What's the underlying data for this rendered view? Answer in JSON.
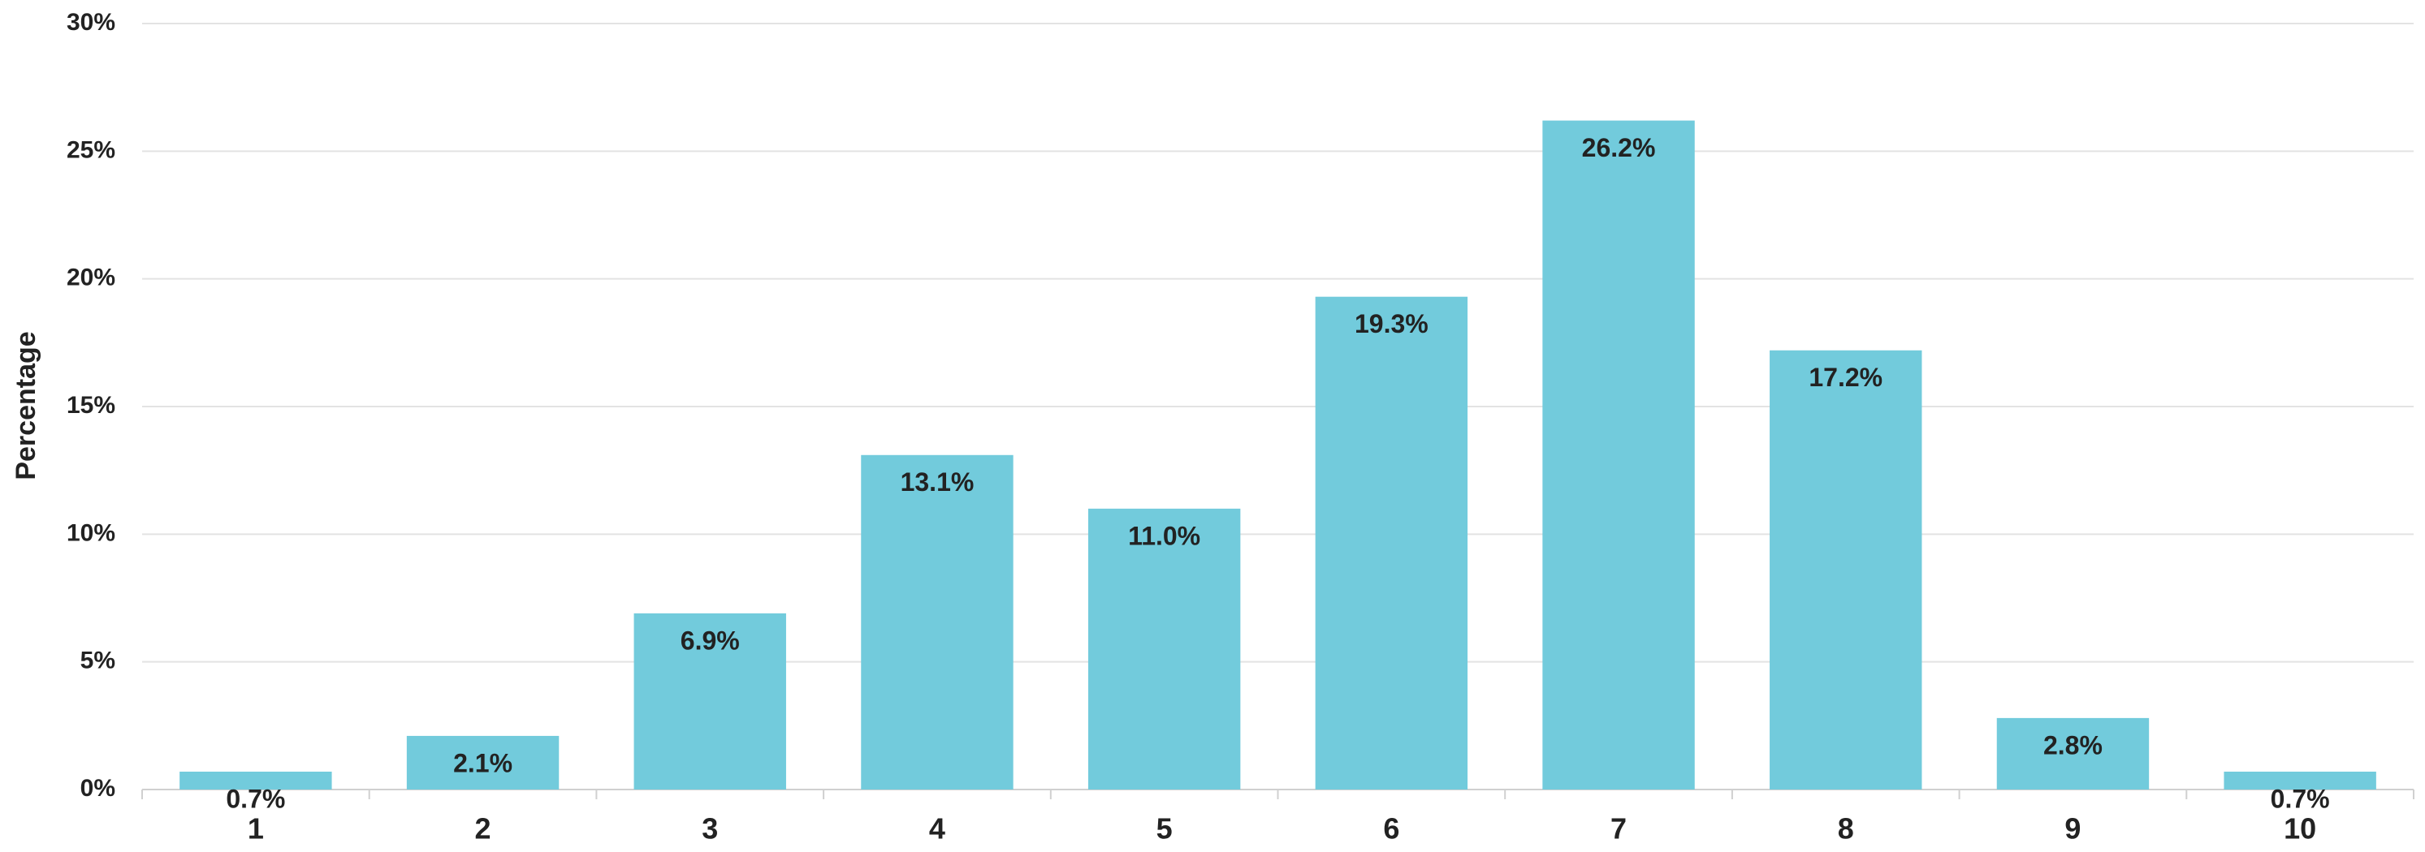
{
  "chart_data": {
    "type": "bar",
    "y_label": "Percentage",
    "categories": [
      "1",
      "2",
      "3",
      "4",
      "5",
      "6",
      "7",
      "8",
      "9",
      "10"
    ],
    "values": [
      0.7,
      2.1,
      6.9,
      13.1,
      11.0,
      19.3,
      26.2,
      17.2,
      2.8,
      0.7
    ],
    "value_labels": [
      "0.7%",
      "2.1%",
      "6.9%",
      "13.1%",
      "11.0%",
      "19.3%",
      "26.2%",
      "17.2%",
      "2.8%",
      "0.7%"
    ],
    "color": "#72cbdc",
    "ylim": [
      0,
      30
    ],
    "yticks": [
      {
        "value": 0,
        "label": "0%"
      },
      {
        "value": 5,
        "label": "5%"
      },
      {
        "value": 10,
        "label": "10%"
      },
      {
        "value": 15,
        "label": "15%"
      },
      {
        "value": 20,
        "label": "20%"
      },
      {
        "value": 25,
        "label": "25%"
      },
      {
        "value": 30,
        "label": "30%"
      }
    ],
    "grid": true
  }
}
